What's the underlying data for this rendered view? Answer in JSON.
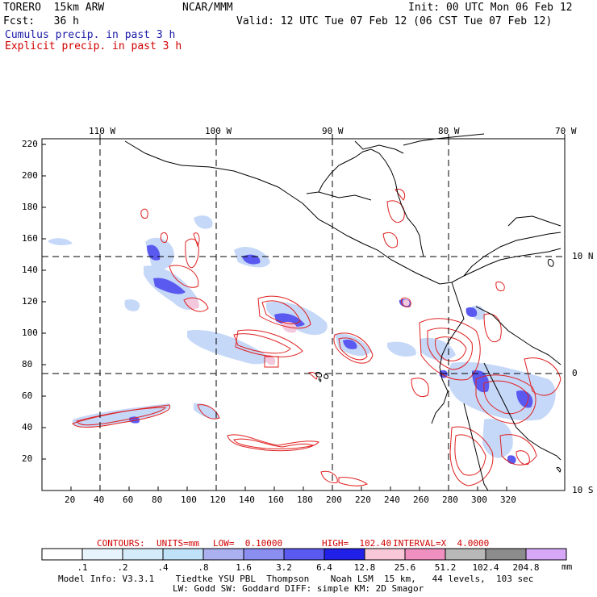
{
  "header": {
    "model": "TORERO  15km ARW",
    "org": "NCAR/MMM",
    "init": "Init: 00 UTC Mon 06 Feb 12",
    "fcst": "Fcst:   36 h",
    "valid": "Valid: 12 UTC Tue 07 Feb 12 (06 CST Tue 07 Feb 12)",
    "field1": "Cumulus precip. in past 3 h",
    "field2": "Explicit precip. in past 3 h"
  },
  "map": {
    "lon_labels": [
      "110 W",
      "100 W",
      "90 W",
      "80 W",
      "70 W"
    ],
    "lat_labels": [
      "10 N",
      "0",
      "10 S"
    ],
    "x_ticks": [
      "20",
      "40",
      "60",
      "80",
      "100",
      "120",
      "140",
      "160",
      "180",
      "200",
      "220",
      "240",
      "260",
      "280",
      "300",
      "320"
    ],
    "y_ticks": [
      "20",
      "40",
      "60",
      "80",
      "100",
      "120",
      "140",
      "160",
      "180",
      "200",
      "220"
    ]
  },
  "contours": {
    "label": "CONTOURS:",
    "units": "UNITS=mm",
    "low": "LOW=  0.10000",
    "high": "HIGH=  102.40",
    "interval": "INTERVAL=X  4.0000"
  },
  "colorbar": {
    "labels": [
      ".1",
      ".2",
      ".4",
      ".8",
      "1.6",
      "3.2",
      "6.4",
      "12.8",
      "25.6",
      "51.2",
      "102.4",
      "204.8"
    ],
    "unit": "mm",
    "colors": [
      "#ffffff",
      "#e8f4fc",
      "#d4ecfa",
      "#c0e2f8",
      "#aab0f0",
      "#8a8ef0",
      "#5a5af0",
      "#2020e8",
      "#f8c8d8",
      "#f090c0",
      "#b8b8b8",
      "#8c8c8c",
      "#d8a8f8"
    ]
  },
  "footer": {
    "line1": "Model Info: V3.3.1    Tiedtke YSU PBL  Thompson    Noah LSM  15 km,   44 levels,  103 sec",
    "line2": "LW: Godd SW: Goddard DIFF: simple KM: 2D Smagor"
  }
}
